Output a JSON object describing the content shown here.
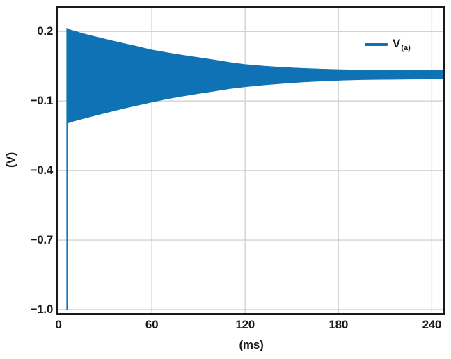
{
  "figure": {
    "title": "",
    "background": "#ffffff",
    "xlabel": "(ms)",
    "ylabel": "(V)"
  },
  "legend": {
    "symbol": "V",
    "subscript": "(a)",
    "position": "upper-right"
  },
  "colors": {
    "series": "#0f72b5",
    "grid": "#d2d2d2",
    "frame": "#1a1a1a",
    "text": "#1a1a1a",
    "background": "#ffffff"
  },
  "chart_data": {
    "type": "line",
    "title": "",
    "xlabel": "(ms)",
    "ylabel": "(V)",
    "xlim": [
      0,
      247
    ],
    "ylim": [
      -1.015,
      0.3
    ],
    "grid": true,
    "legend_position": "upper-right",
    "x_ticks": {
      "values": [
        0,
        60,
        120,
        180,
        240
      ],
      "labels": [
        "0",
        "60",
        "120",
        "180",
        "240"
      ]
    },
    "y_ticks": {
      "values": [
        0.2,
        -0.1,
        -0.4,
        -0.7,
        -1.0
      ],
      "labels": [
        "0.2",
        "−0.1",
        "−0.4",
        "−0.7",
        "−1.0"
      ]
    },
    "series": [
      {
        "name": "V(a)",
        "color": "#0f72b5",
        "description": "High-frequency oscillation with exponentially decaying amplitude, rendered as a filled envelope; starts at ~5 ms with a full-scale startup spike and settles to a small steady ripple around +0.015 V.",
        "startup_spike": {
          "t_ms": 5.1,
          "width_ms": 0.7,
          "v_top": 0.215,
          "v_bottom": -1.0
        },
        "envelope": {
          "t_ms": [
            5.3,
            7,
            9,
            12,
            16,
            20,
            25,
            30,
            36,
            42,
            50,
            60,
            70,
            80,
            90,
            100,
            110,
            120,
            132,
            145,
            158,
            170,
            180,
            195,
            210,
            225,
            247
          ],
          "upper_v": [
            0.213,
            0.209,
            0.205,
            0.199,
            0.191,
            0.184,
            0.176,
            0.168,
            0.158,
            0.149,
            0.137,
            0.121,
            0.109,
            0.098,
            0.088,
            0.078,
            0.067,
            0.058,
            0.051,
            0.045,
            0.041,
            0.038,
            0.036,
            0.034,
            0.034,
            0.034,
            0.035
          ],
          "lower_v": [
            -0.197,
            -0.193,
            -0.189,
            -0.183,
            -0.176,
            -0.169,
            -0.16,
            -0.152,
            -0.142,
            -0.132,
            -0.12,
            -0.105,
            -0.091,
            -0.079,
            -0.068,
            -0.058,
            -0.047,
            -0.039,
            -0.031,
            -0.024,
            -0.018,
            -0.014,
            -0.011,
            -0.008,
            -0.007,
            -0.006,
            -0.005
          ]
        }
      }
    ]
  }
}
